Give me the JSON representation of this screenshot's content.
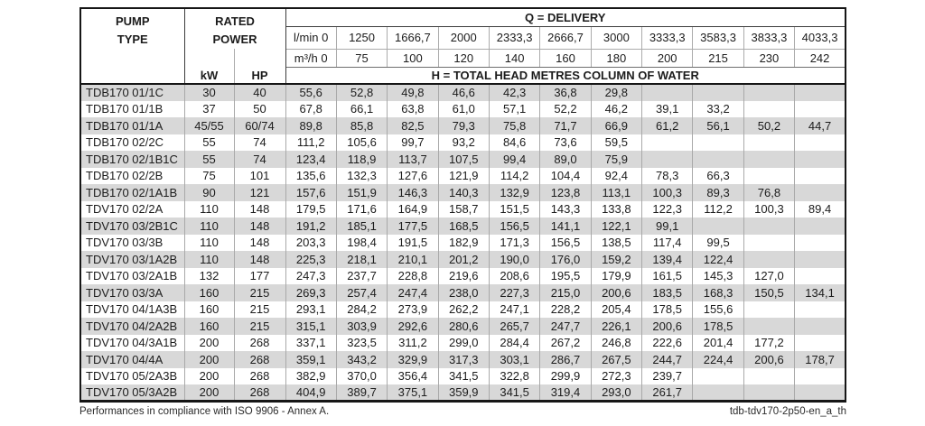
{
  "header": {
    "pump_line1": "PUMP",
    "pump_line2": "TYPE",
    "rated_line1": "RATED",
    "rated_line2": "POWER",
    "kw": "kW",
    "hp": "HP",
    "q_delivery": "Q = DELIVERY",
    "h_total": "H = TOTAL HEAD METRES COLUMN OF WATER",
    "lmin_unit": "l/min",
    "m3h_unit": "m³/h",
    "lmin": [
      "0",
      "1250",
      "1666,7",
      "2000",
      "2333,3",
      "2666,7",
      "3000",
      "3333,3",
      "3583,3",
      "3833,3",
      "4033,3"
    ],
    "m3h": [
      "0",
      "75",
      "100",
      "120",
      "140",
      "160",
      "180",
      "200",
      "215",
      "230",
      "242"
    ]
  },
  "rows": [
    {
      "type": "TDB170 01/1C",
      "kw": "30",
      "hp": "40",
      "h": [
        "55,6",
        "52,8",
        "49,8",
        "46,6",
        "42,3",
        "36,8",
        "29,8",
        "",
        "",
        "",
        ""
      ]
    },
    {
      "type": "TDB170 01/1B",
      "kw": "37",
      "hp": "50",
      "h": [
        "67,8",
        "66,1",
        "63,8",
        "61,0",
        "57,1",
        "52,2",
        "46,2",
        "39,1",
        "33,2",
        "",
        ""
      ]
    },
    {
      "type": "TDB170 01/1A",
      "kw": "45/55",
      "hp": "60/74",
      "h": [
        "89,8",
        "85,8",
        "82,5",
        "79,3",
        "75,8",
        "71,7",
        "66,9",
        "61,2",
        "56,1",
        "50,2",
        "44,7"
      ]
    },
    {
      "type": "TDB170 02/2C",
      "kw": "55",
      "hp": "74",
      "h": [
        "111,2",
        "105,6",
        "99,7",
        "93,2",
        "84,6",
        "73,6",
        "59,5",
        "",
        "",
        "",
        ""
      ]
    },
    {
      "type": "TDB170 02/1B1C",
      "kw": "55",
      "hp": "74",
      "h": [
        "123,4",
        "118,9",
        "113,7",
        "107,5",
        "99,4",
        "89,0",
        "75,9",
        "",
        "",
        "",
        ""
      ]
    },
    {
      "type": "TDB170 02/2B",
      "kw": "75",
      "hp": "101",
      "h": [
        "135,6",
        "132,3",
        "127,6",
        "121,9",
        "114,2",
        "104,4",
        "92,4",
        "78,3",
        "66,3",
        "",
        ""
      ]
    },
    {
      "type": "TDB170 02/1A1B",
      "kw": "90",
      "hp": "121",
      "h": [
        "157,6",
        "151,9",
        "146,3",
        "140,3",
        "132,9",
        "123,8",
        "113,1",
        "100,3",
        "89,3",
        "76,8",
        ""
      ]
    },
    {
      "type": "TDV170 02/2A",
      "kw": "110",
      "hp": "148",
      "h": [
        "179,5",
        "171,6",
        "164,9",
        "158,7",
        "151,5",
        "143,3",
        "133,8",
        "122,3",
        "112,2",
        "100,3",
        "89,4"
      ]
    },
    {
      "type": "TDV170 03/2B1C",
      "kw": "110",
      "hp": "148",
      "h": [
        "191,2",
        "185,1",
        "177,5",
        "168,5",
        "156,5",
        "141,1",
        "122,1",
        "99,1",
        "",
        "",
        ""
      ]
    },
    {
      "type": "TDV170 03/3B",
      "kw": "110",
      "hp": "148",
      "h": [
        "203,3",
        "198,4",
        "191,5",
        "182,9",
        "171,3",
        "156,5",
        "138,5",
        "117,4",
        "99,5",
        "",
        ""
      ]
    },
    {
      "type": "TDV170 03/1A2B",
      "kw": "110",
      "hp": "148",
      "h": [
        "225,3",
        "218,1",
        "210,1",
        "201,2",
        "190,0",
        "176,0",
        "159,2",
        "139,4",
        "122,4",
        "",
        ""
      ]
    },
    {
      "type": "TDV170 03/2A1B",
      "kw": "132",
      "hp": "177",
      "h": [
        "247,3",
        "237,7",
        "228,8",
        "219,6",
        "208,6",
        "195,5",
        "179,9",
        "161,5",
        "145,3",
        "127,0",
        ""
      ]
    },
    {
      "type": "TDV170 03/3A",
      "kw": "160",
      "hp": "215",
      "h": [
        "269,3",
        "257,4",
        "247,4",
        "238,0",
        "227,3",
        "215,0",
        "200,6",
        "183,5",
        "168,3",
        "150,5",
        "134,1"
      ]
    },
    {
      "type": "TDV170 04/1A3B",
      "kw": "160",
      "hp": "215",
      "h": [
        "293,1",
        "284,2",
        "273,9",
        "262,2",
        "247,1",
        "228,2",
        "205,4",
        "178,5",
        "155,6",
        "",
        ""
      ]
    },
    {
      "type": "TDV170 04/2A2B",
      "kw": "160",
      "hp": "215",
      "h": [
        "315,1",
        "303,9",
        "292,6",
        "280,6",
        "265,7",
        "247,7",
        "226,1",
        "200,6",
        "178,5",
        "",
        ""
      ]
    },
    {
      "type": "TDV170 04/3A1B",
      "kw": "200",
      "hp": "268",
      "h": [
        "337,1",
        "323,5",
        "311,2",
        "299,0",
        "284,4",
        "267,2",
        "246,8",
        "222,6",
        "201,4",
        "177,2",
        ""
      ]
    },
    {
      "type": "TDV170 04/4A",
      "kw": "200",
      "hp": "268",
      "h": [
        "359,1",
        "343,2",
        "329,9",
        "317,3",
        "303,1",
        "286,7",
        "267,5",
        "244,7",
        "224,4",
        "200,6",
        "178,7"
      ]
    },
    {
      "type": "TDV170 05/2A3B",
      "kw": "200",
      "hp": "268",
      "h": [
        "382,9",
        "370,0",
        "356,4",
        "341,5",
        "322,8",
        "299,9",
        "272,3",
        "239,7",
        "",
        "",
        ""
      ]
    },
    {
      "type": "TDV170 05/3A2B",
      "kw": "200",
      "hp": "268",
      "h": [
        "404,9",
        "389,7",
        "375,1",
        "359,9",
        "341,5",
        "319,4",
        "293,0",
        "261,7",
        "",
        "",
        ""
      ]
    }
  ],
  "footer": {
    "left": "Performances in compliance with ISO 9906 - Annex A.",
    "right": "tdb-tdv170-2p50-en_a_th"
  },
  "colors": {
    "stripe": "#d8d8d8",
    "border_dark": "#161616",
    "border_light": "#a9a9a9"
  }
}
